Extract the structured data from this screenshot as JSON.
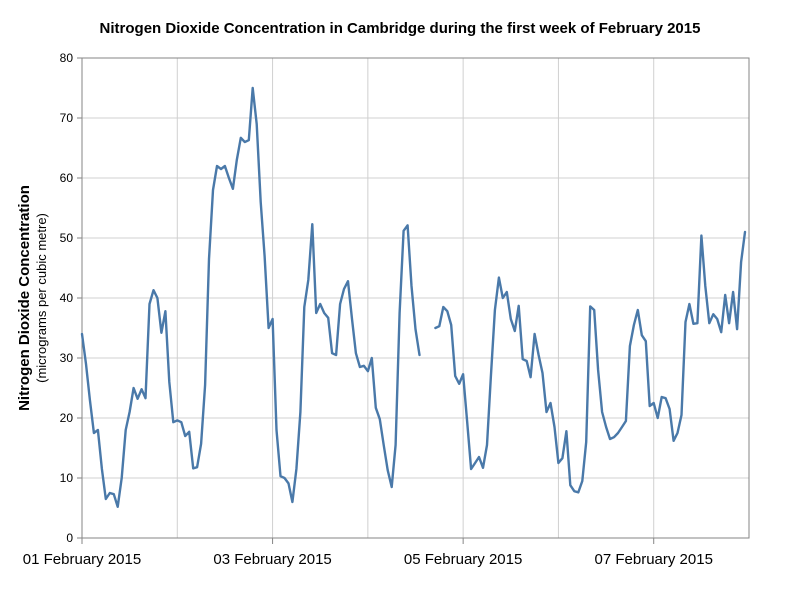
{
  "chart_data": {
    "type": "line",
    "title": "Nitrogen Dioxide Concentration in Cambridge during the first week of February 2015",
    "ylabel": "Nitrogen Dioxide Concentration",
    "ylabel_sub": "(micrograms per cubic metre)",
    "xlabel": "",
    "ylim": [
      0,
      80
    ],
    "yticks": [
      0,
      10,
      20,
      30,
      40,
      50,
      60,
      70,
      80
    ],
    "grid": true,
    "legend": "none",
    "line_color": "#4A79A9",
    "x_unit": "hours since 01 February 2015 00:00",
    "xlim": [
      0,
      168
    ],
    "xticks": [
      {
        "x": 0,
        "label": "01 February 2015"
      },
      {
        "x": 48,
        "label": "03 February 2015"
      },
      {
        "x": 96,
        "label": "05 February 2015"
      },
      {
        "x": 144,
        "label": "07 February 2015"
      }
    ],
    "gridlines_x": [
      24,
      72,
      120
    ],
    "series": [
      {
        "name": "",
        "segments": [
          [
            [
              0,
              34
            ],
            [
              1,
              29
            ],
            [
              2,
              23
            ],
            [
              3,
              17.5
            ],
            [
              4,
              18
            ],
            [
              5,
              11.5
            ],
            [
              6,
              6.5
            ],
            [
              7,
              7.5
            ],
            [
              8,
              7.3
            ],
            [
              9,
              5.2
            ],
            [
              10,
              10
            ],
            [
              11,
              18
            ],
            [
              12,
              21
            ],
            [
              13,
              25
            ],
            [
              14,
              23.2
            ],
            [
              15,
              24.8
            ],
            [
              16,
              23.3
            ],
            [
              17,
              39
            ],
            [
              18,
              41.3
            ],
            [
              19,
              40
            ],
            [
              20,
              34.2
            ],
            [
              21,
              37.8
            ],
            [
              22,
              26
            ],
            [
              23,
              19.3
            ],
            [
              24,
              19.6
            ],
            [
              25,
              19.3
            ],
            [
              26,
              17
            ],
            [
              27,
              17.7
            ],
            [
              28,
              11.6
            ],
            [
              29,
              11.8
            ],
            [
              30,
              15.7
            ],
            [
              31,
              25.5
            ],
            [
              32,
              46.5
            ],
            [
              33,
              58
            ],
            [
              34,
              62
            ],
            [
              35,
              61.5
            ],
            [
              36,
              62
            ],
            [
              37,
              60
            ],
            [
              38,
              58.2
            ],
            [
              39,
              63
            ],
            [
              40,
              66.7
            ],
            [
              41,
              66
            ],
            [
              42,
              66.3
            ],
            [
              43,
              75
            ],
            [
              44,
              69
            ],
            [
              45,
              56
            ],
            [
              46,
              47
            ],
            [
              47,
              35
            ],
            [
              48,
              36.5
            ],
            [
              49,
              18
            ],
            [
              50,
              10.3
            ],
            [
              51,
              10
            ],
            [
              52,
              9.1
            ],
            [
              53,
              6
            ],
            [
              54,
              11.5
            ],
            [
              55,
              21
            ],
            [
              56,
              38.5
            ],
            [
              57,
              43
            ],
            [
              58,
              52.3
            ],
            [
              59,
              37.5
            ],
            [
              60,
              39
            ],
            [
              61,
              37.5
            ],
            [
              62,
              36.7
            ],
            [
              63,
              30.8
            ],
            [
              64,
              30.5
            ],
            [
              65,
              39
            ],
            [
              66,
              41.5
            ],
            [
              67,
              42.8
            ],
            [
              68,
              36.5
            ],
            [
              69,
              30.8
            ],
            [
              70,
              28.5
            ],
            [
              71,
              28.7
            ],
            [
              72,
              27.8
            ],
            [
              73,
              30
            ],
            [
              74,
              21.7
            ],
            [
              75,
              19.8
            ],
            [
              76,
              15.5
            ],
            [
              77,
              11.3
            ],
            [
              78,
              8.5
            ],
            [
              79,
              15.5
            ],
            [
              80,
              37.5
            ],
            [
              81,
              51.2
            ],
            [
              82,
              52.1
            ],
            [
              83,
              42
            ],
            [
              84,
              34.8
            ],
            [
              85,
              30.5
            ]
          ],
          [
            [
              89,
              35
            ],
            [
              90,
              35.3
            ],
            [
              91,
              38.5
            ],
            [
              92,
              37.8
            ],
            [
              93,
              35.5
            ],
            [
              94,
              27
            ],
            [
              95,
              25.7
            ],
            [
              96,
              27.3
            ],
            [
              97,
              19.5
            ],
            [
              98,
              11.5
            ],
            [
              99,
              12.5
            ],
            [
              100,
              13.5
            ],
            [
              101,
              11.7
            ],
            [
              102,
              15.5
            ],
            [
              103,
              27
            ],
            [
              104,
              38
            ],
            [
              105,
              43.4
            ],
            [
              106,
              40
            ],
            [
              107,
              41
            ],
            [
              108,
              36.5
            ],
            [
              109,
              34.5
            ],
            [
              110,
              38.7
            ],
            [
              111,
              29.8
            ],
            [
              112,
              29.5
            ],
            [
              113,
              26.8
            ],
            [
              114,
              34
            ],
            [
              115,
              30.5
            ],
            [
              116,
              27.5
            ],
            [
              117,
              21
            ],
            [
              118,
              22.5
            ],
            [
              119,
              18.5
            ],
            [
              120,
              12.5
            ],
            [
              121,
              13.3
            ],
            [
              122,
              17.8
            ],
            [
              123,
              8.8
            ],
            [
              124,
              7.8
            ],
            [
              125,
              7.6
            ],
            [
              126,
              9.5
            ],
            [
              127,
              16
            ],
            [
              128,
              38.6
            ],
            [
              129,
              38
            ],
            [
              130,
              28
            ],
            [
              131,
              21
            ],
            [
              132,
              18.5
            ],
            [
              133,
              16.5
            ],
            [
              134,
              16.8
            ],
            [
              135,
              17.5
            ],
            [
              136,
              18.5
            ],
            [
              137,
              19.5
            ],
            [
              138,
              32
            ],
            [
              139,
              35.5
            ],
            [
              140,
              38
            ],
            [
              141,
              33.8
            ],
            [
              142,
              32.8
            ],
            [
              143,
              22
            ],
            [
              144,
              22.5
            ],
            [
              145,
              20
            ],
            [
              146,
              23.5
            ],
            [
              147,
              23.3
            ],
            [
              148,
              21.5
            ],
            [
              149,
              16.2
            ],
            [
              150,
              17.5
            ],
            [
              151,
              20.5
            ],
            [
              152,
              36
            ],
            [
              153,
              39
            ],
            [
              154,
              35.7
            ],
            [
              155,
              35.8
            ],
            [
              156,
              50.4
            ],
            [
              157,
              42
            ],
            [
              158,
              35.8
            ],
            [
              159,
              37.3
            ],
            [
              160,
              36.5
            ],
            [
              161,
              34.3
            ],
            [
              162,
              40.5
            ],
            [
              163,
              35.8
            ],
            [
              164,
              41
            ],
            [
              165,
              34.8
            ],
            [
              166,
              46
            ],
            [
              167,
              51
            ]
          ]
        ]
      }
    ]
  }
}
